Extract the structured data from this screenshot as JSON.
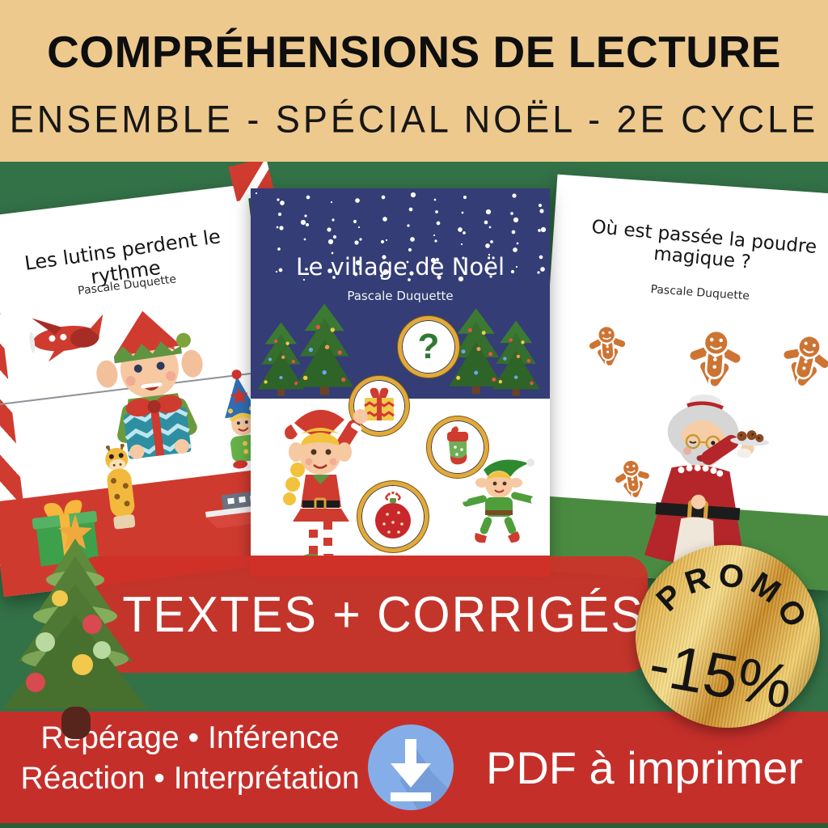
{
  "header": {
    "title": "COMPRÉHENSIONS DE LECTURE",
    "subtitle": "ENSEMBLE - SPÉCIAL NOËL - 2E CYCLE"
  },
  "covers": {
    "left": {
      "title": "Les lutins perdent le rythme",
      "author": "Pascale Duquette"
    },
    "center": {
      "title": "Le village de Noël",
      "author": "Pascale Duquette",
      "question_mark": "?"
    },
    "right": {
      "title": "Où est passée la poudre magique ?",
      "author": "Pascale Duquette"
    }
  },
  "promo_banner": {
    "label": "4 TEXTES + CORRIGÉS"
  },
  "promo_badge": {
    "arc_text": "PROMO",
    "discount": "-15%"
  },
  "footer": {
    "skills_line1": "Repérage • Inférence",
    "skills_line2": "Réaction • Interprétation",
    "format_label": "PDF à imprimer"
  },
  "icons": {
    "download": "download-arrow-icon",
    "question": "question-mark-icon"
  },
  "colors": {
    "header_bg": "#edc98e",
    "main_bg": "#337147",
    "navy": "#343d75",
    "banner_red": "#cf3029",
    "footer_red": "#c52f2a",
    "gold_ring": "#e2a93b",
    "download_blue": "#85aee8",
    "bottom_strip_green": "#2b5d38"
  }
}
